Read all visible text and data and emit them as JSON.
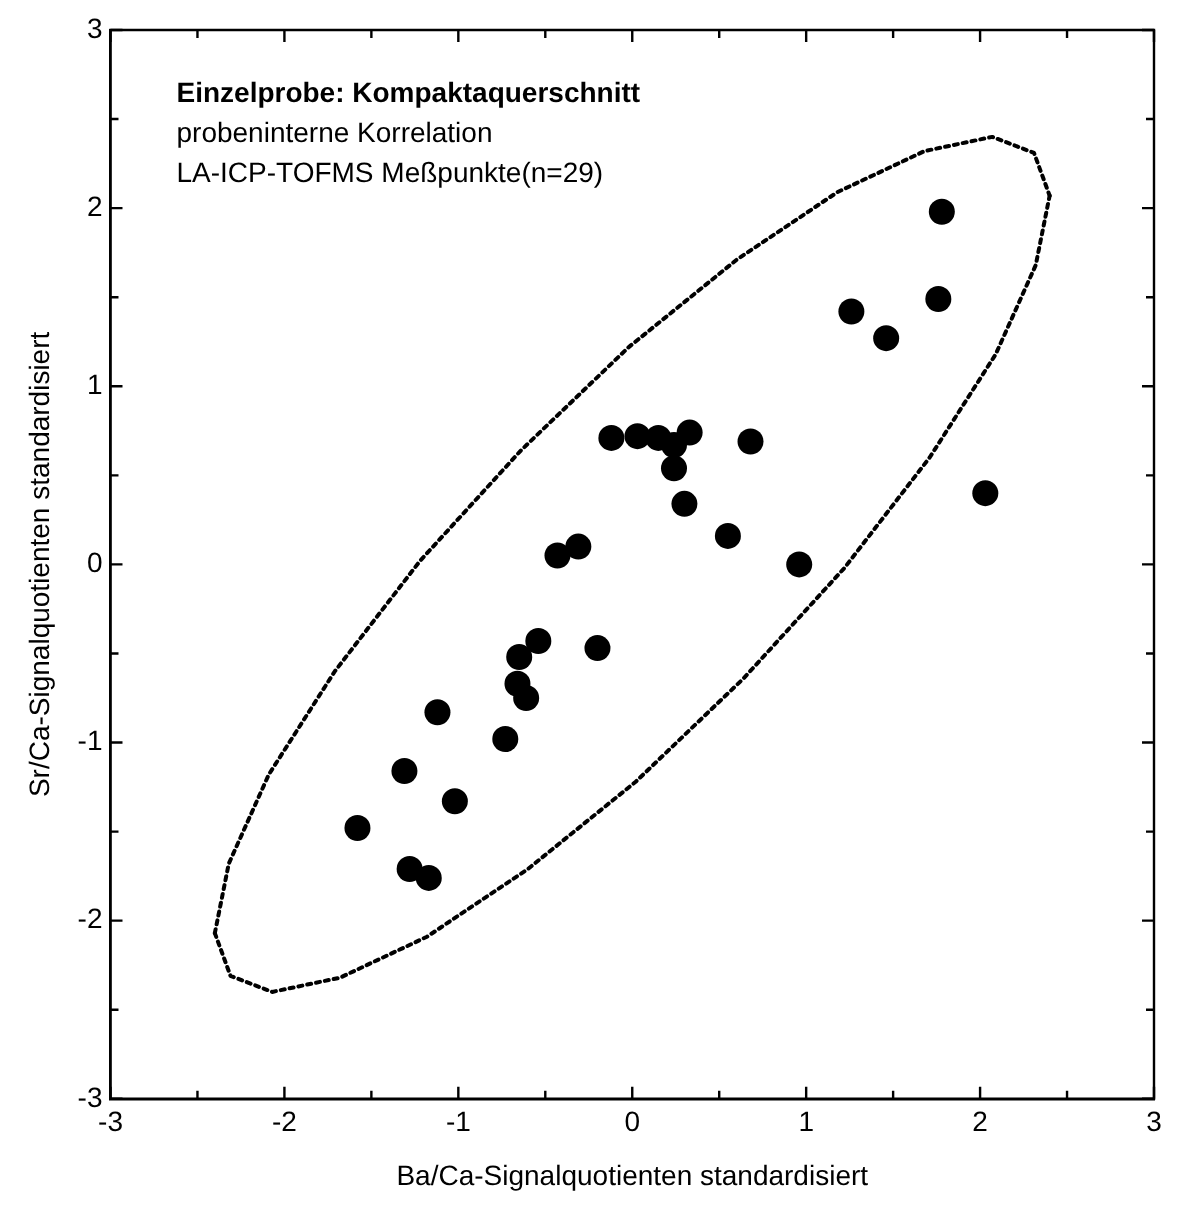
{
  "chart_data": {
    "type": "scatter",
    "title": "Einzelprobe: Kompaktaquerschnitt",
    "annotations": [
      "probeninterne Korrelation",
      "LA-ICP-TOFMS Meßpunkte(n=29)"
    ],
    "xlabel": "Ba/Ca-Signalquotienten standardisiert",
    "ylabel": "Sr/Ca-Signalquotienten standardisiert",
    "xlim": [
      -3,
      3
    ],
    "ylim": [
      -3,
      3
    ],
    "xticks": [
      -3,
      {
        "value": -2.5,
        "label": null
      },
      -2,
      {
        "value": -1.5,
        "label": null
      },
      -1,
      {
        "value": -0.5,
        "label": null
      },
      0,
      {
        "value": 0.5,
        "label": null
      },
      1,
      {
        "value": 1.5,
        "label": null
      },
      2,
      {
        "value": 2.5,
        "label": null
      },
      3
    ],
    "yticks": [
      -3,
      {
        "value": -2.5,
        "label": null
      },
      -2,
      {
        "value": -1.5,
        "label": null
      },
      -1,
      {
        "value": -0.5,
        "label": null
      },
      0,
      {
        "value": 0.5,
        "label": null
      },
      1,
      {
        "value": 1.5,
        "label": null
      },
      2,
      {
        "value": 2.5,
        "label": null
      },
      3
    ],
    "grid": false,
    "legend": false,
    "marker": "circle",
    "series": [
      {
        "color": "#000000",
        "x": [
          1.78,
          1.76,
          1.26,
          1.46,
          -0.12,
          0.03,
          0.15,
          0.24,
          0.33,
          0.68,
          0.24,
          0.3,
          2.03,
          0.55,
          0.96,
          -0.31,
          -0.43,
          -0.54,
          -0.65,
          -0.2,
          -0.66,
          -0.61,
          -1.12,
          -0.73,
          -1.31,
          -1.02,
          -1.58,
          -1.28,
          -1.17
        ],
        "values": [
          1.98,
          1.49,
          1.42,
          1.27,
          0.71,
          0.72,
          0.71,
          0.67,
          0.74,
          0.69,
          0.54,
          0.34,
          0.4,
          0.16,
          0.0,
          0.1,
          0.05,
          -0.43,
          -0.52,
          -0.47,
          -0.67,
          -0.75,
          -0.83,
          -0.98,
          -1.16,
          -1.33,
          -1.48,
          -1.71,
          -1.76
        ]
      },
      {
        "type": "line",
        "color": "#000000",
        "marker": "none",
        "line_style": "dotted",
        "x": [
          -2.4,
          -2.32,
          -2.09,
          -1.71,
          -1.22,
          -0.64,
          -0.02,
          0.6,
          1.18,
          1.68,
          2.07,
          2.31,
          2.4
        ],
        "values": [
          -2.07,
          -1.68,
          -1.18,
          -0.6,
          0.02,
          0.64,
          1.22,
          1.71,
          2.09,
          2.32,
          2.4,
          2.31,
          2.07
        ]
      },
      {
        "type": "line",
        "color": "#000000",
        "marker": "none",
        "line_style": "dotted",
        "x": [
          -2.4,
          -2.31,
          -2.07,
          -1.68,
          -1.18,
          -0.6,
          0.02,
          0.64,
          1.22,
          1.71,
          2.09,
          2.32,
          2.4
        ],
        "values": [
          -2.07,
          -2.31,
          -2.4,
          -2.32,
          -2.09,
          -1.71,
          -1.22,
          -0.64,
          -0.02,
          0.6,
          1.18,
          1.68,
          2.07
        ]
      }
    ]
  }
}
